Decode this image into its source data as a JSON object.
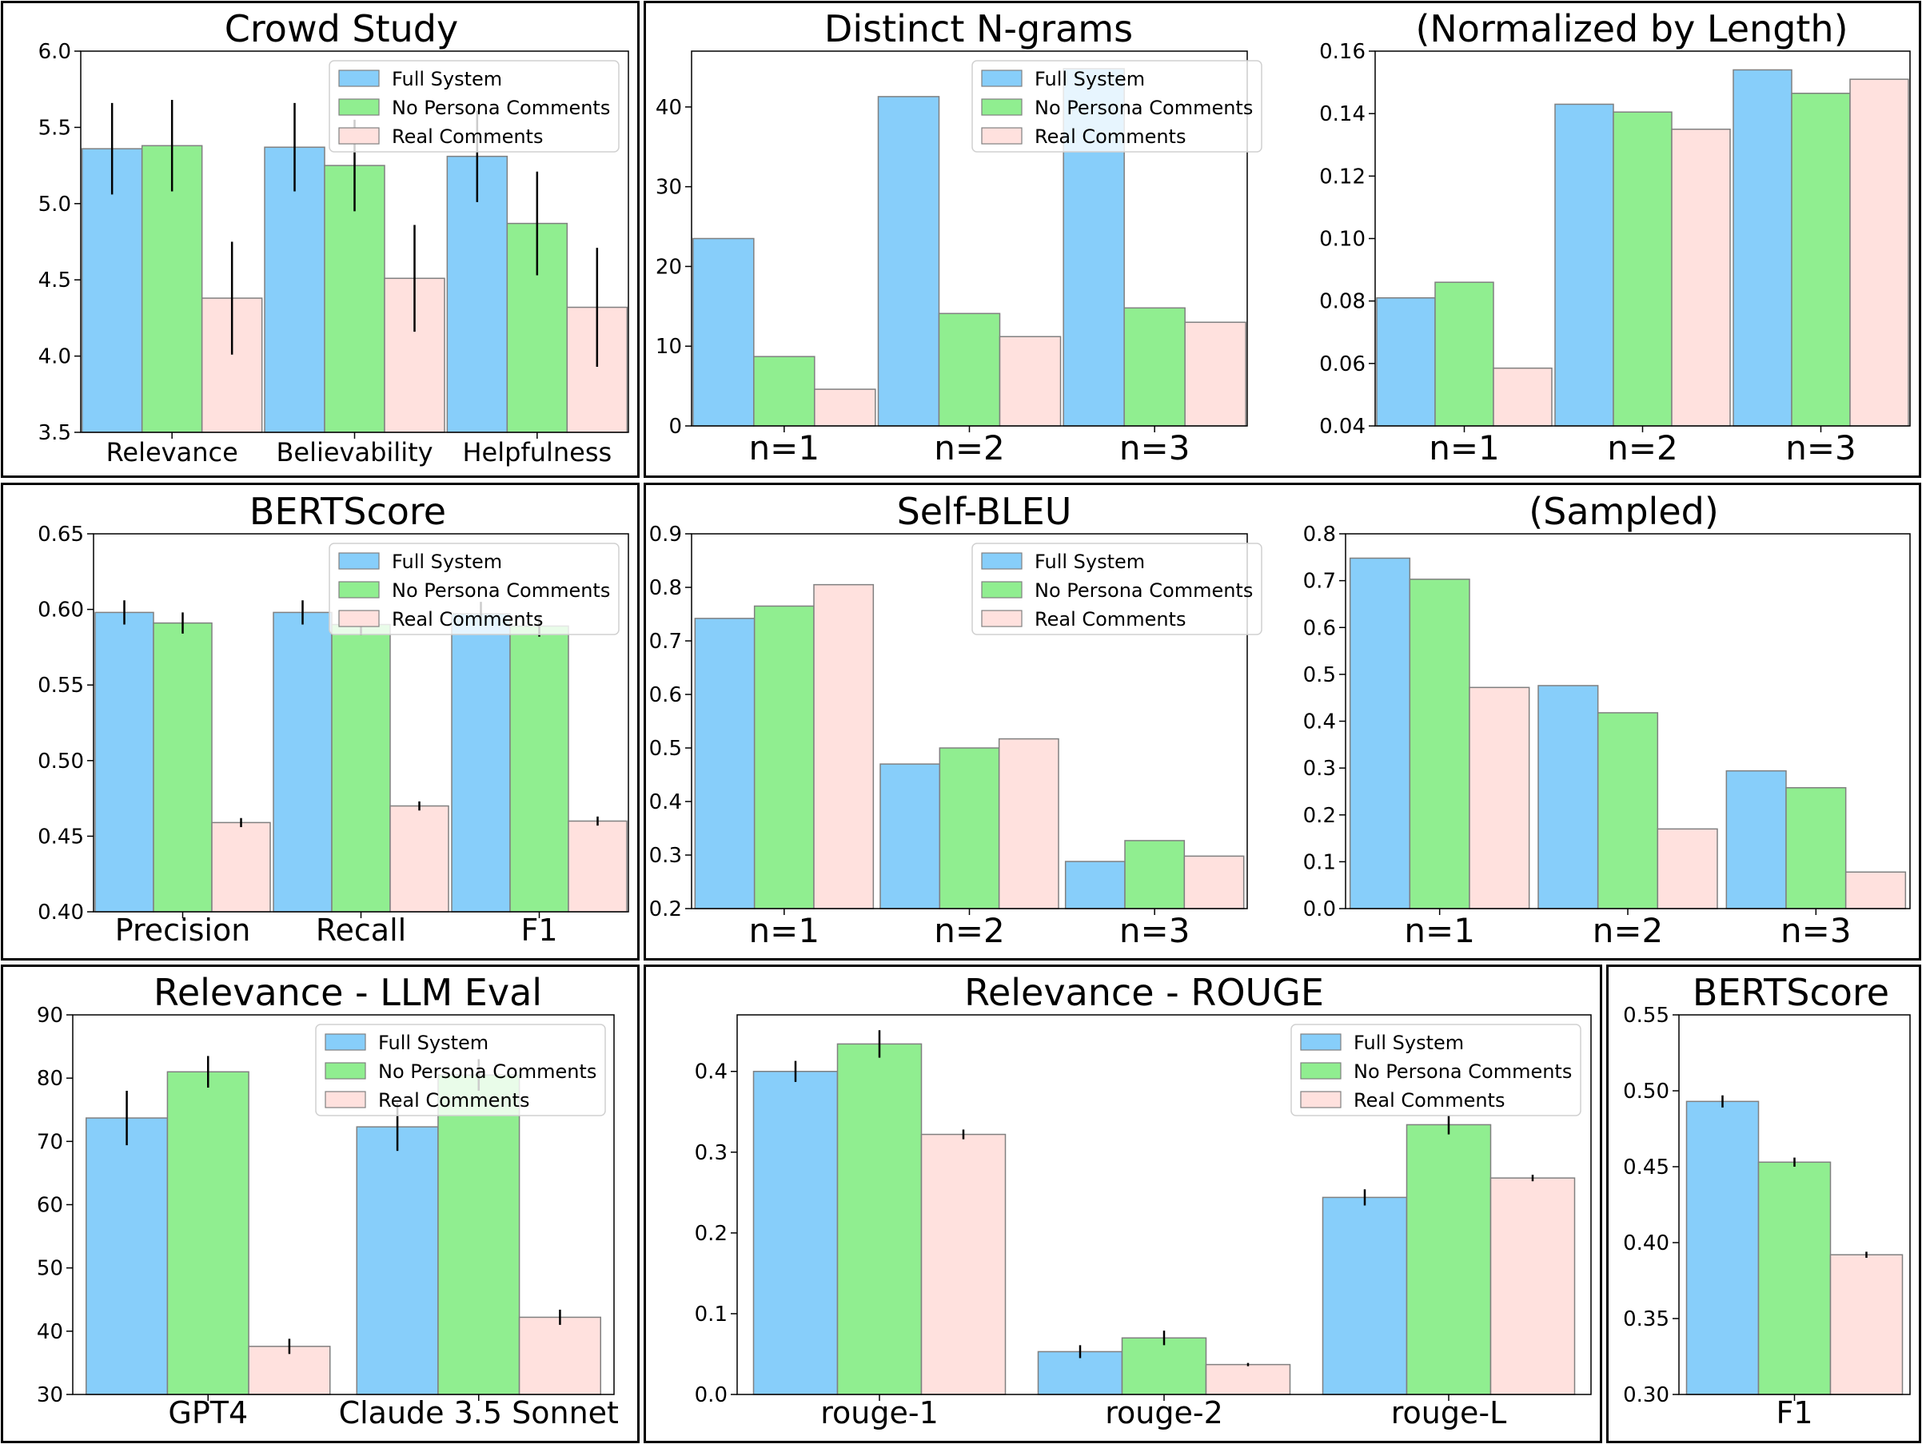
{
  "colors": {
    "full": "#87CEFA",
    "nopersona": "#90EE90",
    "real": "#FFE1DE",
    "edge": "#808080"
  },
  "legend": [
    "Full System",
    "No Persona Comments",
    "Real Comments"
  ],
  "chart_data": [
    {
      "id": "crowd",
      "type": "bar",
      "title": "Crowd Study",
      "categories": [
        "Relevance",
        "Believability",
        "Helpfulness"
      ],
      "ylim": [
        3.5,
        6.0
      ],
      "yticks": [
        "3.5",
        "4.0",
        "4.5",
        "5.0",
        "5.5",
        "6.0"
      ],
      "series": [
        {
          "name": "Full System",
          "values": [
            5.36,
            5.37,
            5.31
          ],
          "err": [
            0.3,
            0.29,
            0.3
          ]
        },
        {
          "name": "No Persona Comments",
          "values": [
            5.38,
            5.25,
            4.87
          ],
          "err": [
            0.3,
            0.3,
            0.34
          ]
        },
        {
          "name": "Real Comments",
          "values": [
            4.38,
            4.51,
            4.32
          ],
          "err": [
            0.37,
            0.35,
            0.39
          ]
        }
      ]
    },
    {
      "id": "distinct",
      "type": "bar",
      "title": "Distinct N-grams",
      "categories": [
        "n=1",
        "n=2",
        "n=3"
      ],
      "ylim": [
        0,
        47
      ],
      "yticks": [
        "0",
        "10",
        "20",
        "30",
        "40"
      ],
      "series": [
        {
          "name": "Full System",
          "values": [
            23.5,
            41.3,
            44.8
          ]
        },
        {
          "name": "No Persona Comments",
          "values": [
            8.7,
            14.1,
            14.8
          ]
        },
        {
          "name": "Real Comments",
          "values": [
            4.6,
            11.2,
            13.0
          ]
        }
      ]
    },
    {
      "id": "distinctnorm",
      "type": "bar",
      "title": "(Normalized by Length)",
      "categories": [
        "n=1",
        "n=2",
        "n=3"
      ],
      "ylim": [
        0.04,
        0.16
      ],
      "yticks": [
        "0.04",
        "0.06",
        "0.08",
        "0.10",
        "0.12",
        "0.14",
        "0.16"
      ],
      "series": [
        {
          "name": "Full System",
          "values": [
            0.081,
            0.143,
            0.154
          ]
        },
        {
          "name": "No Persona Comments",
          "values": [
            0.086,
            0.1405,
            0.1465
          ]
        },
        {
          "name": "Real Comments",
          "values": [
            0.0585,
            0.135,
            0.151
          ]
        }
      ]
    },
    {
      "id": "bert1",
      "type": "bar",
      "title": "BERTScore",
      "categories": [
        "Precision",
        "Recall",
        "F1"
      ],
      "ylim": [
        0.4,
        0.65
      ],
      "yticks": [
        "0.40",
        "0.45",
        "0.50",
        "0.55",
        "0.60",
        "0.65"
      ],
      "series": [
        {
          "name": "Full System",
          "values": [
            0.598,
            0.598,
            0.597
          ],
          "err": [
            0.008,
            0.008,
            0.008
          ]
        },
        {
          "name": "No Persona Comments",
          "values": [
            0.591,
            0.59,
            0.589
          ],
          "err": [
            0.007,
            0.007,
            0.007
          ]
        },
        {
          "name": "Real Comments",
          "values": [
            0.459,
            0.47,
            0.46
          ],
          "err": [
            0.003,
            0.003,
            0.003
          ]
        }
      ]
    },
    {
      "id": "selfbleu",
      "type": "bar",
      "title": "Self-BLEU",
      "categories": [
        "n=1",
        "n=2",
        "n=3"
      ],
      "ylim": [
        0.2,
        0.9
      ],
      "yticks": [
        "0.2",
        "0.3",
        "0.4",
        "0.5",
        "0.6",
        "0.7",
        "0.8",
        "0.9"
      ],
      "series": [
        {
          "name": "Full System",
          "values": [
            0.742,
            0.47,
            0.288
          ]
        },
        {
          "name": "No Persona Comments",
          "values": [
            0.765,
            0.5,
            0.327
          ]
        },
        {
          "name": "Real Comments",
          "values": [
            0.805,
            0.517,
            0.298
          ]
        }
      ]
    },
    {
      "id": "selfbleusampled",
      "type": "bar",
      "title": "(Sampled)",
      "categories": [
        "n=1",
        "n=2",
        "n=3"
      ],
      "ylim": [
        0.0,
        0.8
      ],
      "yticks": [
        "0.0",
        "0.1",
        "0.2",
        "0.3",
        "0.4",
        "0.5",
        "0.6",
        "0.7",
        "0.8"
      ],
      "series": [
        {
          "name": "Full System",
          "values": [
            0.748,
            0.476,
            0.294
          ]
        },
        {
          "name": "No Persona Comments",
          "values": [
            0.703,
            0.418,
            0.258
          ]
        },
        {
          "name": "Real Comments",
          "values": [
            0.472,
            0.17,
            0.078
          ]
        }
      ]
    },
    {
      "id": "llmeval",
      "type": "bar",
      "title": "Relevance - LLM Eval",
      "categories": [
        "GPT4",
        "Claude 3.5 Sonnet"
      ],
      "ylim": [
        30,
        90
      ],
      "yticks": [
        "30",
        "40",
        "50",
        "60",
        "70",
        "80",
        "90"
      ],
      "series": [
        {
          "name": "Full System",
          "values": [
            73.7,
            72.3
          ],
          "err": [
            4.3,
            3.8
          ]
        },
        {
          "name": "No Persona Comments",
          "values": [
            81.0,
            80.5
          ],
          "err": [
            2.5,
            2.5
          ]
        },
        {
          "name": "Real Comments",
          "values": [
            37.6,
            42.2
          ],
          "err": [
            1.2,
            1.2
          ]
        }
      ]
    },
    {
      "id": "rouge",
      "type": "bar",
      "title": "Relevance - ROUGE",
      "categories": [
        "rouge-1",
        "rouge-2",
        "rouge-L"
      ],
      "ylim": [
        0.0,
        0.47
      ],
      "yticks": [
        "0.0",
        "0.1",
        "0.2",
        "0.3",
        "0.4"
      ],
      "series": [
        {
          "name": "Full System",
          "values": [
            0.4,
            0.053,
            0.244
          ],
          "err": [
            0.013,
            0.008,
            0.01
          ]
        },
        {
          "name": "No Persona Comments",
          "values": [
            0.434,
            0.07,
            0.334
          ],
          "err": [
            0.017,
            0.009,
            0.012
          ]
        },
        {
          "name": "Real Comments",
          "values": [
            0.322,
            0.037,
            0.268
          ],
          "err": [
            0.006,
            0.002,
            0.004
          ]
        }
      ]
    },
    {
      "id": "bert2",
      "type": "bar",
      "title": "BERTScore",
      "categories": [
        "F1"
      ],
      "ylim": [
        0.3,
        0.55
      ],
      "yticks": [
        "0.30",
        "0.35",
        "0.40",
        "0.45",
        "0.50",
        "0.55"
      ],
      "series": [
        {
          "name": "Full System",
          "values": [
            0.493
          ],
          "err": [
            0.004
          ]
        },
        {
          "name": "No Persona Comments",
          "values": [
            0.453
          ],
          "err": [
            0.003
          ]
        },
        {
          "name": "Real Comments",
          "values": [
            0.392
          ],
          "err": [
            0.002
          ]
        }
      ]
    }
  ]
}
